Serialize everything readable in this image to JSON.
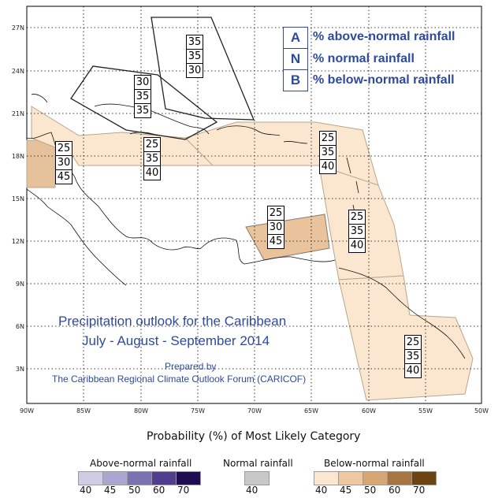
{
  "map": {
    "lat_labels": [
      "27N",
      "24N",
      "21N",
      "18N",
      "15N",
      "12N",
      "9N",
      "6N",
      "3N"
    ],
    "lon_labels": [
      "90W",
      "85W",
      "80W",
      "75W",
      "70W",
      "65W",
      "60W",
      "55W",
      "50W"
    ],
    "colors": {
      "below40": "#fbe6cf",
      "below45": "#eec9a0",
      "land": "#000000",
      "frame": "#000000"
    },
    "regions": [
      {
        "name": "bahamas",
        "above": "35",
        "normal": "35",
        "below": "30"
      },
      {
        "name": "cuba",
        "above": "30",
        "normal": "35",
        "below": "35"
      },
      {
        "name": "belize",
        "above": "25",
        "normal": "30",
        "below": "45"
      },
      {
        "name": "jamaica",
        "above": "25",
        "normal": "35",
        "below": "40"
      },
      {
        "name": "hispaniola-puerto-rico",
        "above": "25",
        "normal": "35",
        "below": "40"
      },
      {
        "name": "abc-islands",
        "above": "25",
        "normal": "30",
        "below": "45"
      },
      {
        "name": "eastern-caribbean",
        "above": "25",
        "normal": "35",
        "below": "40"
      },
      {
        "name": "guianas",
        "above": "25",
        "normal": "35",
        "below": "40"
      }
    ]
  },
  "key": {
    "a_letter": "A",
    "a_text": "% above-normal rainfall",
    "n_letter": "N",
    "n_text": "% normal rainfall",
    "b_letter": "B",
    "b_text": "% below-normal rainfall"
  },
  "outlook": {
    "title1": "Precipitation outlook for the Caribbean",
    "title2": "July - August - September 2014",
    "prepared": "Prepared by",
    "org": "The Caribbean Regional Climate Outlook Forum (CARICOF)"
  },
  "legend": {
    "heading": "Probability (%) of Most Likely Category",
    "above_label": "Above-normal rainfall",
    "normal_label": "Normal rainfall",
    "below_label": "Below-normal rainfall",
    "above_values": [
      "40",
      "45",
      "50",
      "60",
      "70"
    ],
    "above_colors": [
      "#cfcde6",
      "#a9a6d0",
      "#7a73b2",
      "#4f3f8e",
      "#1f0d52"
    ],
    "normal_values": [
      "40"
    ],
    "normal_colors": [
      "#c8c8c8"
    ],
    "below_values": [
      "40",
      "45",
      "50",
      "60",
      "70"
    ],
    "below_colors": [
      "#fbe6cf",
      "#eec9a0",
      "#d8a673",
      "#a77640",
      "#6b4410"
    ]
  }
}
